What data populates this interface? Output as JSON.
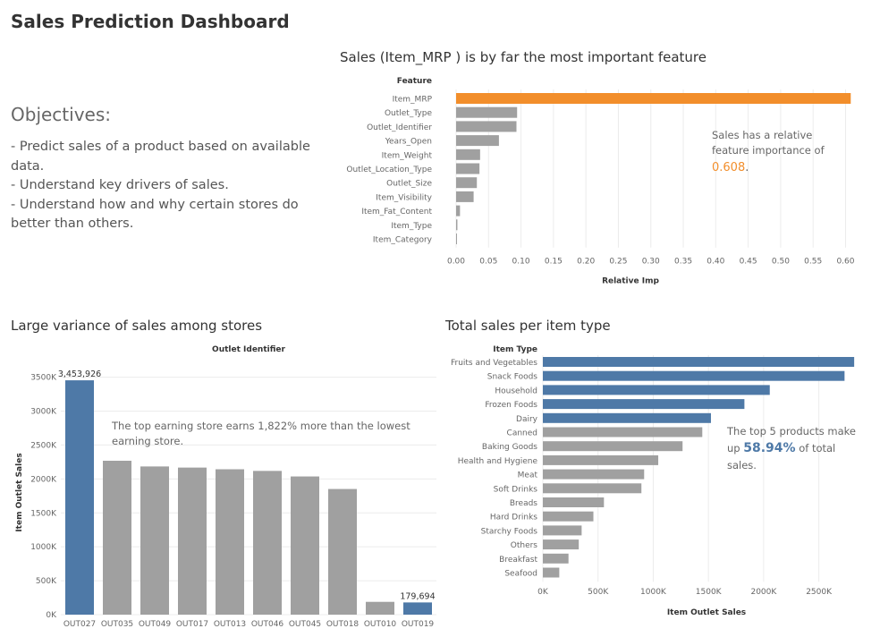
{
  "dashboard": {
    "title": "Sales Prediction Dashboard"
  },
  "objectives": {
    "title": "Objectives:",
    "lines": [
      "- Predict sales of a product based on available data.",
      "- Understand key drivers of sales.",
      "- Understand how and why certain stores do better than others."
    ]
  },
  "colors": {
    "highlight_orange": "#F28E2B",
    "highlight_blue": "#4E79A7",
    "gray": "#A0A0A0"
  },
  "chart_data": [
    {
      "type": "bar",
      "orientation": "horizontal",
      "title": "Sales (Item_MRP ) is by far the most important feature",
      "category_header": "Feature",
      "xlabel": "Relative Imp",
      "xlim": [
        0,
        0.62
      ],
      "xticks": [
        "0.00",
        "0.05",
        "0.10",
        "0.15",
        "0.20",
        "0.25",
        "0.30",
        "0.35",
        "0.40",
        "0.45",
        "0.50",
        "0.55",
        "0.60"
      ],
      "categories": [
        "Item_MRP",
        "Outlet_Type",
        "Outlet_Identifier",
        "Years_Open",
        "Item_Weight",
        "Outlet_Location_Type",
        "Outlet_Size",
        "Item_Visibility",
        "Item_Fat_Content",
        "Item_Type",
        "Item_Category"
      ],
      "values": [
        0.608,
        0.094,
        0.093,
        0.066,
        0.037,
        0.036,
        0.032,
        0.027,
        0.006,
        0.002,
        0.001
      ],
      "highlight": [
        0
      ],
      "grid": true,
      "annotation": {
        "text": "Sales has a relative feature importance of",
        "value": "0.608",
        "suffix": "."
      }
    },
    {
      "type": "bar",
      "orientation": "vertical",
      "title": "Large variance of sales among stores",
      "category_header": "Outlet Identifier",
      "ylabel": "Item Outlet Sales",
      "ylim": [
        0,
        3600000
      ],
      "yticks": [
        "0K",
        "500K",
        "1000K",
        "1500K",
        "2000K",
        "2500K",
        "3000K",
        "3500K"
      ],
      "categories": [
        "OUT027",
        "OUT035",
        "OUT049",
        "OUT017",
        "OUT013",
        "OUT046",
        "OUT045",
        "OUT018",
        "OUT010",
        "OUT019"
      ],
      "values": [
        3453926,
        2268123,
        2183970,
        2167465,
        2142664,
        2118395,
        2036725,
        1851823,
        188340,
        179694
      ],
      "highlight": [
        0,
        9
      ],
      "data_labels": [
        "3,453,926",
        "",
        "",
        "",
        "",
        "",
        "",
        "",
        "",
        "179,694"
      ],
      "grid": true,
      "annotation": {
        "text": "The top earning store earns 1,822% more than the lowest earning store."
      }
    },
    {
      "type": "bar",
      "orientation": "horizontal",
      "title": "Total sales per item type",
      "category_header": "Item Type",
      "xlabel": "Item Outlet Sales",
      "xlim": [
        0,
        2900000
      ],
      "xticks": [
        "0K",
        "500K",
        "1000K",
        "1500K",
        "2000K",
        "2500K"
      ],
      "categories": [
        "Fruits and Vegetables",
        "Snack Foods",
        "Household",
        "Frozen Foods",
        "Dairy",
        "Canned",
        "Baking Goods",
        "Health and Hygiene",
        "Meat",
        "Soft Drinks",
        "Breads",
        "Hard Drinks",
        "Starchy Foods",
        "Others",
        "Breakfast",
        "Seafood"
      ],
      "values": [
        2820060,
        2732786,
        2055494,
        1825735,
        1522594,
        1444151,
        1265525,
        1045200,
        917566,
        892898,
        553237,
        457793,
        351401,
        325518,
        232299,
        148868
      ],
      "highlight": [
        0,
        1,
        2,
        3,
        4
      ],
      "grid": true,
      "annotation": {
        "text_before": "The top 5 products make up",
        "value": "58.94%",
        "text_after": "of total sales."
      }
    }
  ]
}
